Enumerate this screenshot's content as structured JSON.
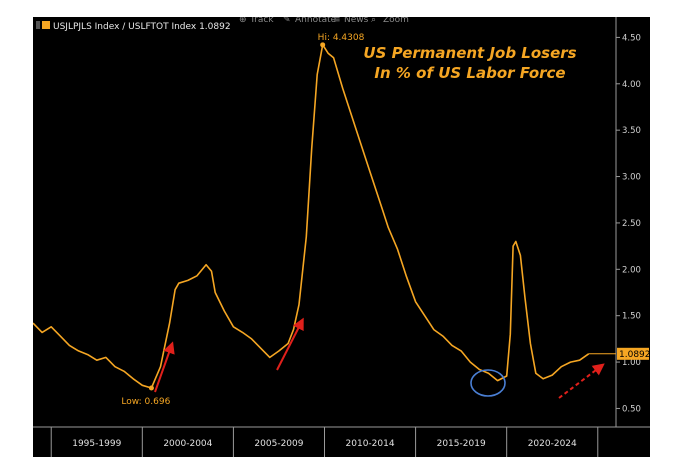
{
  "toolbar": {
    "items": [
      {
        "icon": "track-icon",
        "label": "Track"
      },
      {
        "icon": "annotate-icon",
        "label": "Annotate"
      },
      {
        "icon": "news-icon",
        "label": "News"
      },
      {
        "icon": "zoom-icon",
        "label": "Zoom"
      }
    ]
  },
  "legend": {
    "label": "USJLPJLS Index / USLFTOT Index 1.0892",
    "color": "#f5a623"
  },
  "colors": {
    "line": "#f5a623",
    "background": "#000000",
    "arrow": "#e0201b",
    "circle": "#4a7fd4"
  },
  "chart_data": {
    "type": "line",
    "title": "US Permanent Job Losers In % of US Labor Force",
    "title_lines": [
      "US Permanent Job Losers",
      "In % of US Labor Force"
    ],
    "xlabel": "",
    "ylabel": "",
    "x_categories": [
      "1995-1999",
      "2000-2004",
      "2005-2009",
      "2010-2014",
      "2015-2019",
      "2020-2024"
    ],
    "x_range": [
      1994.0,
      2026.0
    ],
    "ylim": [
      0.3,
      4.72
    ],
    "y_ticks": [
      "0.50",
      "1.00",
      "1.50",
      "2.00",
      "2.50",
      "3.00",
      "3.50",
      "4.00",
      "4.50"
    ],
    "grid": false,
    "last_value": "1.0892",
    "annotations": {
      "high": "Hi: 4.4308",
      "low": "Low: 0.696"
    },
    "series": [
      {
        "name": "USJLPJLS Index / USLFTOT Index",
        "x": [
          1994.0,
          1994.5,
          1995.0,
          1995.5,
          1996.0,
          1996.5,
          1997.0,
          1997.5,
          1998.0,
          1998.5,
          1999.0,
          1999.5,
          2000.0,
          2000.5,
          2001.0,
          2001.5,
          2001.8,
          2002.0,
          2002.5,
          2003.0,
          2003.5,
          2003.8,
          2004.0,
          2004.5,
          2005.0,
          2005.5,
          2006.0,
          2006.5,
          2007.0,
          2007.5,
          2008.0,
          2008.3,
          2008.6,
          2009.0,
          2009.3,
          2009.6,
          2009.9,
          2010.2,
          2010.5,
          2011.0,
          2011.5,
          2012.0,
          2012.5,
          2013.0,
          2013.5,
          2014.0,
          2014.5,
          2015.0,
          2015.5,
          2016.0,
          2016.5,
          2017.0,
          2017.5,
          2018.0,
          2018.5,
          2019.0,
          2019.5,
          2020.0,
          2020.2,
          2020.35,
          2020.5,
          2020.75,
          2021.0,
          2021.3,
          2021.6,
          2022.0,
          2022.5,
          2023.0,
          2023.5,
          2024.0,
          2024.5
        ],
        "values": [
          1.42,
          1.32,
          1.38,
          1.28,
          1.18,
          1.12,
          1.08,
          1.02,
          1.05,
          0.95,
          0.9,
          0.82,
          0.75,
          0.72,
          0.95,
          1.42,
          1.78,
          1.85,
          1.88,
          1.93,
          2.05,
          1.98,
          1.75,
          1.55,
          1.38,
          1.32,
          1.25,
          1.15,
          1.05,
          1.12,
          1.2,
          1.35,
          1.62,
          2.35,
          3.3,
          4.1,
          4.42,
          4.33,
          4.28,
          3.95,
          3.65,
          3.35,
          3.05,
          2.75,
          2.45,
          2.22,
          1.92,
          1.65,
          1.5,
          1.35,
          1.28,
          1.18,
          1.12,
          1.0,
          0.92,
          0.88,
          0.8,
          0.85,
          1.3,
          2.25,
          2.3,
          2.15,
          1.7,
          1.2,
          0.88,
          0.82,
          0.86,
          0.95,
          1.0,
          1.02,
          1.0891
        ]
      }
    ]
  }
}
